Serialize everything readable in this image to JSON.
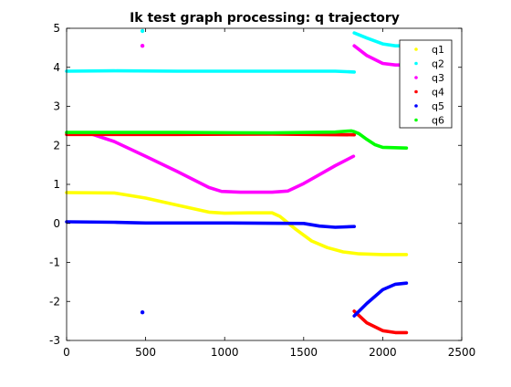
{
  "chart_data": {
    "type": "scatter",
    "title": "Ik test graph processing: q trajectory",
    "xlabel": "",
    "ylabel": "",
    "xlim": [
      0,
      2500
    ],
    "ylim": [
      -3,
      5
    ],
    "xticks": [
      0,
      500,
      1000,
      1500,
      2000,
      2500
    ],
    "yticks": [
      5,
      4,
      3,
      2,
      1,
      0,
      -1,
      -2,
      -3
    ],
    "xtick_labels": [
      "0",
      "500",
      "1000",
      "1500",
      "2000",
      "2500"
    ],
    "ytick_labels": [
      "5",
      "4",
      "3",
      "2",
      "1",
      "0",
      "-1",
      "-2",
      "-3"
    ],
    "grid": false,
    "legend_position": "top-right",
    "series": [
      {
        "name": "q1",
        "color": "#ffff00",
        "segments": [
          [
            [
              0,
              0.79
            ],
            [
              300,
              0.78
            ],
            [
              500,
              0.65
            ],
            [
              700,
              0.47
            ],
            [
              900,
              0.29
            ],
            [
              1000,
              0.26
            ],
            [
              1150,
              0.27
            ],
            [
              1300,
              0.27
            ],
            [
              1350,
              0.18
            ],
            [
              1450,
              -0.15
            ],
            [
              1550,
              -0.45
            ],
            [
              1650,
              -0.62
            ],
            [
              1750,
              -0.73
            ],
            [
              1850,
              -0.78
            ],
            [
              2000,
              -0.8
            ],
            [
              2150,
              -0.8
            ]
          ]
        ],
        "points": []
      },
      {
        "name": "q2",
        "color": "#00ffff",
        "segments": [
          [
            [
              0,
              3.9
            ],
            [
              300,
              3.91
            ],
            [
              700,
              3.9
            ],
            [
              1200,
              3.9
            ],
            [
              1700,
              3.9
            ],
            [
              1820,
              3.88
            ]
          ],
          [
            [
              1820,
              4.88
            ],
            [
              1900,
              4.75
            ],
            [
              2000,
              4.6
            ],
            [
              2080,
              4.55
            ],
            [
              2150,
              4.55
            ]
          ]
        ],
        "points": [
          [
            480,
            4.93
          ]
        ]
      },
      {
        "name": "q3",
        "color": "#ff00ff",
        "segments": [
          [
            [
              0,
              2.32
            ],
            [
              150,
              2.3
            ],
            [
              300,
              2.1
            ],
            [
              500,
              1.72
            ],
            [
              700,
              1.33
            ],
            [
              900,
              0.92
            ],
            [
              980,
              0.82
            ],
            [
              1100,
              0.8
            ],
            [
              1300,
              0.8
            ],
            [
              1400,
              0.83
            ],
            [
              1500,
              1.02
            ],
            [
              1600,
              1.25
            ],
            [
              1700,
              1.48
            ],
            [
              1815,
              1.72
            ]
          ],
          [
            [
              1820,
              4.55
            ],
            [
              1900,
              4.3
            ],
            [
              2000,
              4.1
            ],
            [
              2080,
              4.06
            ],
            [
              2150,
              4.06
            ]
          ]
        ],
        "points": [
          [
            480,
            4.55
          ]
        ]
      },
      {
        "name": "q4",
        "color": "#ff0000",
        "segments": [
          [
            [
              0,
              2.28
            ],
            [
              700,
              2.28
            ],
            [
              1300,
              2.29
            ],
            [
              1820,
              2.27
            ]
          ],
          [
            [
              1820,
              -2.25
            ],
            [
              1900,
              -2.55
            ],
            [
              2000,
              -2.75
            ],
            [
              2080,
              -2.8
            ],
            [
              2150,
              -2.8
            ]
          ]
        ],
        "points": []
      },
      {
        "name": "q5",
        "color": "#0000ff",
        "segments": [
          [
            [
              0,
              0.04
            ],
            [
              300,
              0.03
            ],
            [
              500,
              0.01
            ],
            [
              1000,
              0.01
            ],
            [
              1500,
              0.0
            ],
            [
              1600,
              -0.07
            ],
            [
              1700,
              -0.1
            ],
            [
              1820,
              -0.08
            ]
          ],
          [
            [
              1820,
              -2.37
            ],
            [
              1900,
              -2.05
            ],
            [
              2000,
              -1.7
            ],
            [
              2080,
              -1.56
            ],
            [
              2150,
              -1.53
            ]
          ]
        ],
        "points": [
          [
            480,
            -2.28
          ]
        ]
      },
      {
        "name": "q6",
        "color": "#00ff00",
        "segments": [
          [
            [
              0,
              2.33
            ],
            [
              700,
              2.33
            ],
            [
              1300,
              2.32
            ],
            [
              1700,
              2.34
            ],
            [
              1800,
              2.37
            ],
            [
              1820,
              2.35
            ],
            [
              1850,
              2.3
            ],
            [
              1900,
              2.15
            ],
            [
              1950,
              2.02
            ],
            [
              2000,
              1.95
            ],
            [
              2150,
              1.93
            ]
          ]
        ],
        "points": []
      }
    ]
  }
}
